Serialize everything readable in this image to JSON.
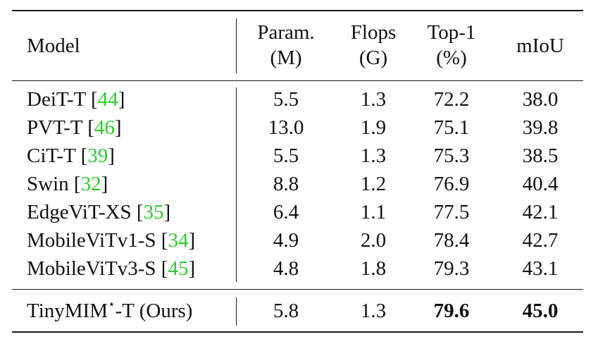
{
  "header": {
    "model": "Model",
    "param_line1": "Param.",
    "param_line2": "(M)",
    "flops_line1": "Flops",
    "flops_line2": "(G)",
    "top1_line1": "Top-1",
    "top1_line2": "(%)",
    "miou": "mIoU"
  },
  "rows": [
    {
      "name": "DeiT-T",
      "ref": "44",
      "param": "5.5",
      "flops": "1.3",
      "top1": "72.2",
      "miou": "38.0"
    },
    {
      "name": "PVT-T",
      "ref": "46",
      "param": "13.0",
      "flops": "1.9",
      "top1": "75.1",
      "miou": "39.8"
    },
    {
      "name": "CiT-T",
      "ref": "39",
      "param": "5.5",
      "flops": "1.3",
      "top1": "75.3",
      "miou": "38.5"
    },
    {
      "name": "Swin",
      "ref": "32",
      "param": "8.8",
      "flops": "1.2",
      "top1": "76.9",
      "miou": "40.4"
    },
    {
      "name": "EdgeViT-XS",
      "ref": "35",
      "param": "6.4",
      "flops": "1.1",
      "top1": "77.5",
      "miou": "42.1"
    },
    {
      "name": "MobileViTv1-S",
      "ref": "34",
      "param": "4.9",
      "flops": "2.0",
      "top1": "78.4",
      "miou": "42.7"
    },
    {
      "name": "MobileViTv3-S",
      "ref": "45",
      "param": "4.8",
      "flops": "1.8",
      "top1": "79.3",
      "miou": "43.1"
    }
  ],
  "ours": {
    "name_prefix": "TinyMIM",
    "star": "⋆",
    "name_suffix": "-T (Ours)",
    "param": "5.8",
    "flops": "1.3",
    "top1": "79.6",
    "miou": "45.0"
  },
  "colors": {
    "citation": "#2ecc2e",
    "rule": "#1a1a1a"
  }
}
